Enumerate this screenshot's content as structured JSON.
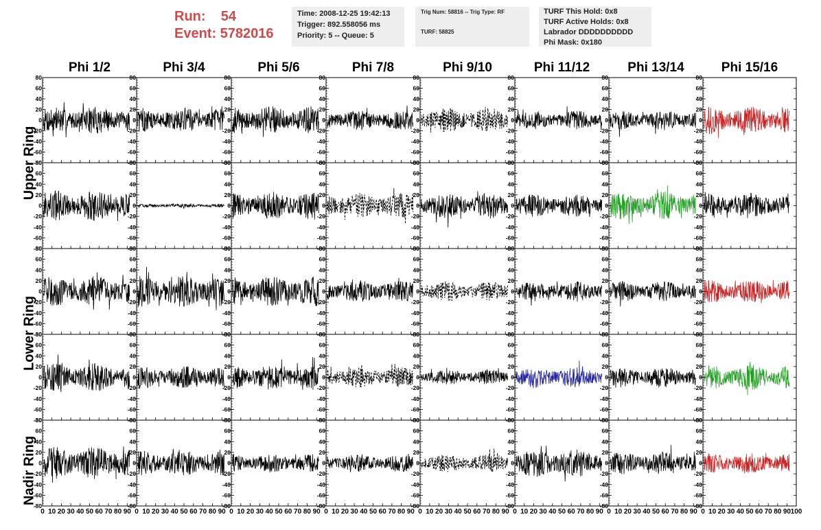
{
  "header": {
    "run_label": "Run:",
    "run_value": "54",
    "event_label": "Event:",
    "event_value": "5782016",
    "time_line": "Time: 2008-12-25 19:42:13",
    "trigger_line": "Trigger: 892.558056 ms",
    "priority_line": "Priority: 5 -- Queue: 5",
    "trig_num_line": "Trig Num: 58816 -- Trig Type: RF",
    "turf_line": "TURF: 58825",
    "turf_hold_line": "TURF This Hold: 0x8",
    "turf_active_line": "TURF Active Holds: 0x8",
    "labrador_line": "Labrador DDDDDDDDDD",
    "phi_mask_line": "Phi Mask: 0x180"
  },
  "columns": [
    "Phi 1/2",
    "Phi 3/4",
    "Phi 5/6",
    "Phi 7/8",
    "Phi 9/10",
    "Phi 11/12",
    "Phi 13/14",
    "Phi 15/16"
  ],
  "ring_labels": [
    "Upper Ring",
    "Lower Ring",
    "Nadir Ring"
  ],
  "colors": {
    "header_red": "#d04a4a",
    "trace_black": "#000000",
    "trace_red": "#cc2222",
    "trace_green": "#22a022",
    "trace_blue": "#2020a0"
  },
  "chart_data": {
    "type": "line",
    "xlim": [
      0,
      100
    ],
    "ylim": [
      -80,
      80
    ],
    "y_ticks": [
      -80,
      -60,
      -40,
      -20,
      0,
      20,
      40,
      60,
      80
    ],
    "x_ticks": [
      0,
      10,
      20,
      30,
      40,
      50,
      60,
      70,
      80,
      90,
      100
    ],
    "panels": [
      [
        {
          "style": "solid",
          "color": "black",
          "amp": 22
        },
        {
          "style": "solid",
          "color": "black",
          "amp": 20
        },
        {
          "style": "solid",
          "color": "black",
          "amp": 22
        },
        {
          "style": "solid",
          "color": "black",
          "amp": 16
        },
        {
          "style": "dashed",
          "color": "black",
          "amp": 20
        },
        {
          "style": "solid",
          "color": "black",
          "amp": 15
        },
        {
          "style": "solid",
          "color": "black",
          "amp": 15
        },
        {
          "style": "solid",
          "color": "red",
          "amp": 22
        }
      ],
      [
        {
          "style": "solid",
          "color": "black",
          "amp": 25
        },
        {
          "style": "solid",
          "color": "black",
          "amp": 3
        },
        {
          "style": "solid",
          "color": "black",
          "amp": 22
        },
        {
          "style": "dashed",
          "color": "black",
          "amp": 20
        },
        {
          "style": "solid",
          "color": "black",
          "amp": 20
        },
        {
          "style": "solid",
          "color": "black",
          "amp": 18
        },
        {
          "style": "solid",
          "color": "green",
          "amp": 22
        },
        {
          "style": "solid",
          "color": "black",
          "amp": 20
        }
      ],
      [
        {
          "style": "solid",
          "color": "black",
          "amp": 24
        },
        {
          "style": "solid",
          "color": "black",
          "amp": 25
        },
        {
          "style": "solid",
          "color": "black",
          "amp": 24
        },
        {
          "style": "solid",
          "color": "black",
          "amp": 18
        },
        {
          "style": "dashed",
          "color": "black",
          "amp": 16
        },
        {
          "style": "solid",
          "color": "black",
          "amp": 16
        },
        {
          "style": "solid",
          "color": "black",
          "amp": 16
        },
        {
          "style": "solid",
          "color": "red",
          "amp": 18
        }
      ],
      [
        {
          "style": "solid",
          "color": "black",
          "amp": 22
        },
        {
          "style": "solid",
          "color": "black",
          "amp": 18
        },
        {
          "style": "solid",
          "color": "black",
          "amp": 20
        },
        {
          "style": "dashed",
          "color": "black",
          "amp": 16
        },
        {
          "style": "solid",
          "color": "black",
          "amp": 12
        },
        {
          "style": "solid",
          "color": "blue",
          "amp": 16
        },
        {
          "style": "solid",
          "color": "black",
          "amp": 16
        },
        {
          "style": "solid",
          "color": "green",
          "amp": 20
        }
      ],
      [
        {
          "style": "solid",
          "color": "black",
          "amp": 26
        },
        {
          "style": "solid",
          "color": "black",
          "amp": 20
        },
        {
          "style": "solid",
          "color": "black",
          "amp": 15
        },
        {
          "style": "solid",
          "color": "black",
          "amp": 14
        },
        {
          "style": "dashed",
          "color": "black",
          "amp": 14
        },
        {
          "style": "solid",
          "color": "black",
          "amp": 22
        },
        {
          "style": "solid",
          "color": "black",
          "amp": 18
        },
        {
          "style": "solid",
          "color": "red",
          "amp": 16
        }
      ]
    ]
  }
}
